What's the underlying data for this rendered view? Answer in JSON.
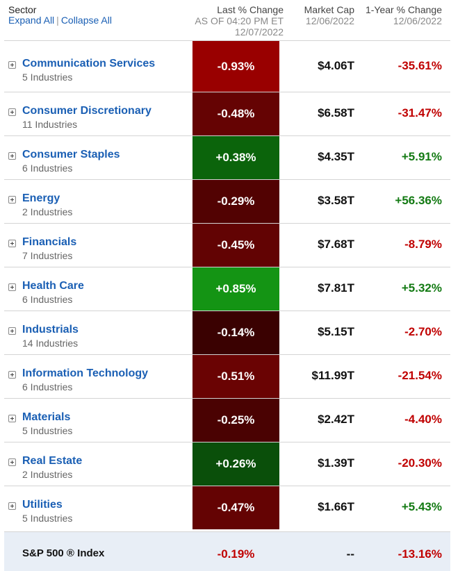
{
  "header": {
    "sector_label": "Sector",
    "expand_all": "Expand All",
    "separator": "|",
    "collapse_all": "Collapse All",
    "last_change_label": "Last % Change",
    "last_change_asof": "AS OF 04:20 PM ET",
    "last_change_date": "12/07/2022",
    "market_cap_label": "Market Cap",
    "market_cap_date": "12/06/2022",
    "one_year_label": "1-Year % Change",
    "one_year_date": "12/06/2022"
  },
  "colors": {
    "link": "#1a5fb4",
    "negative_text": "#c00000",
    "positive_text": "#137a13"
  },
  "sectors": [
    {
      "name": "Communication Services",
      "industries": "5 Industries",
      "last_change": "-0.93%",
      "cell_color": "#990000",
      "market_cap": "$4.06T",
      "one_year": "-35.61%",
      "one_year_dir": "neg"
    },
    {
      "name": "Consumer Discretionary",
      "industries": "11 Industries",
      "last_change": "-0.48%",
      "cell_color": "#650303",
      "market_cap": "$6.58T",
      "one_year": "-31.47%",
      "one_year_dir": "neg"
    },
    {
      "name": "Consumer Staples",
      "industries": "6 Industries",
      "last_change": "+0.38%",
      "cell_color": "#0b640b",
      "market_cap": "$4.35T",
      "one_year": "+5.91%",
      "one_year_dir": "pos"
    },
    {
      "name": "Energy",
      "industries": "2 Industries",
      "last_change": "-0.29%",
      "cell_color": "#520202",
      "market_cap": "$3.58T",
      "one_year": "+56.36%",
      "one_year_dir": "pos"
    },
    {
      "name": "Financials",
      "industries": "7 Industries",
      "last_change": "-0.45%",
      "cell_color": "#620303",
      "market_cap": "$7.68T",
      "one_year": "-8.79%",
      "one_year_dir": "neg"
    },
    {
      "name": "Health Care",
      "industries": "6 Industries",
      "last_change": "+0.85%",
      "cell_color": "#149414",
      "market_cap": "$7.81T",
      "one_year": "+5.32%",
      "one_year_dir": "pos"
    },
    {
      "name": "Industrials",
      "industries": "14 Industries",
      "last_change": "-0.14%",
      "cell_color": "#3a0101",
      "market_cap": "$5.15T",
      "one_year": "-2.70%",
      "one_year_dir": "neg"
    },
    {
      "name": "Information Technology",
      "industries": "6 Industries",
      "last_change": "-0.51%",
      "cell_color": "#6a0303",
      "market_cap": "$11.99T",
      "one_year": "-21.54%",
      "one_year_dir": "neg"
    },
    {
      "name": "Materials",
      "industries": "5 Industries",
      "last_change": "-0.25%",
      "cell_color": "#4a0202",
      "market_cap": "$2.42T",
      "one_year": "-4.40%",
      "one_year_dir": "neg"
    },
    {
      "name": "Real Estate",
      "industries": "2 Industries",
      "last_change": "+0.26%",
      "cell_color": "#0a4f0a",
      "market_cap": "$1.39T",
      "one_year": "-20.30%",
      "one_year_dir": "neg"
    },
    {
      "name": "Utilities",
      "industries": "5 Industries",
      "last_change": "-0.47%",
      "cell_color": "#640303",
      "market_cap": "$1.66T",
      "one_year": "+5.43%",
      "one_year_dir": "pos"
    }
  ],
  "index": {
    "label": "S&P 500 ® Index",
    "last_change": "-0.19%",
    "last_change_dir": "neg",
    "market_cap": "--",
    "one_year": "-13.16%",
    "one_year_dir": "neg"
  }
}
